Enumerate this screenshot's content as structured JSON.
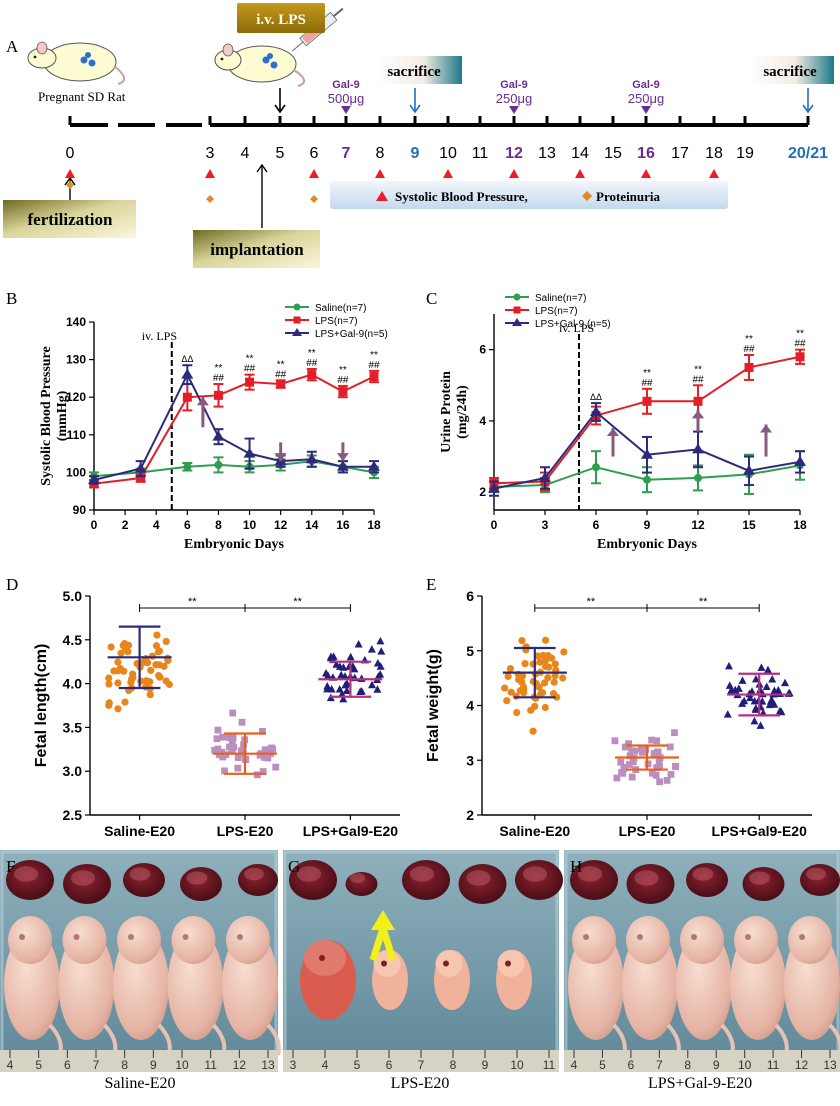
{
  "panel_labels": {
    "a": "A",
    "b": "B",
    "c": "C",
    "d": "D",
    "e": "E",
    "f": "F",
    "g": "G",
    "h": "H"
  },
  "timeline": {
    "rat_label": "Pregnant SD Rat",
    "ivlps_label": "i.v. LPS",
    "sacrifice_label": "sacrifice",
    "days": [
      "0",
      "3",
      "4",
      "5",
      "6",
      "7",
      "8",
      "9",
      "10",
      "11",
      "12",
      "13",
      "14",
      "15",
      "16",
      "17",
      "18",
      "19",
      "20/21"
    ],
    "gal9_label": "Gal-9",
    "gal9_doses": [
      "500μg",
      "250μg",
      "250μg"
    ],
    "fertilization_label": "fertilization",
    "implantation_label": "implantation",
    "legend_sbp": "Systolic Blood Pressure,",
    "legend_prot": "Proteinuria",
    "colors": {
      "sbp": "#ee1c24",
      "prot": "#e08a22",
      "gal9": "#6a2c91",
      "sacrifice": "#1f6fbf"
    }
  },
  "chart_data": [
    {
      "type": "line",
      "panel": "B",
      "ylabel": "Systolic Blood Pressure",
      "ylabel2": "(mmHg)",
      "xlabel": "Embryonic Days",
      "xlim": [
        0,
        18
      ],
      "ylim": [
        90,
        140
      ],
      "xticks": [
        0,
        2,
        4,
        6,
        8,
        10,
        12,
        14,
        16,
        18
      ],
      "yticks": [
        90,
        100,
        110,
        120,
        130,
        140
      ],
      "annotation": "iv. LPS",
      "x": [
        0,
        3,
        6,
        8,
        10,
        12,
        14,
        16,
        18
      ],
      "series": [
        {
          "name": "Saline(n=7)",
          "color": "#2e9e4f",
          "marker": "circle",
          "values": [
            99,
            100,
            101.5,
            102,
            101.5,
            102,
            103,
            101.5,
            100
          ],
          "errors": [
            1,
            1,
            1,
            2,
            1.5,
            1.5,
            1.5,
            1.5,
            1.5
          ]
        },
        {
          "name": "LPS(n=7)",
          "color": "#e41e26",
          "marker": "square",
          "values": [
            97,
            98.5,
            120,
            120.5,
            124,
            123.5,
            126,
            121.5,
            125.5
          ],
          "errors": [
            1,
            1,
            3.5,
            3,
            2,
            1,
            1.5,
            1.5,
            1.5
          ]
        },
        {
          "name": "LPS+Gal-9(n=5)",
          "color": "#2e2a7a",
          "marker": "triangle",
          "values": [
            98,
            101,
            126,
            109.5,
            105,
            103,
            103.5,
            101.5,
            101.5
          ],
          "errors": [
            1,
            2,
            2.5,
            2,
            4,
            1.5,
            2,
            1.5,
            1.5
          ]
        }
      ],
      "sig_x": [
        8,
        10,
        12,
        14,
        16,
        18
      ],
      "sig_star": "**",
      "sig_hash": "##",
      "delta_label": "ΔΔ"
    },
    {
      "type": "line",
      "panel": "C",
      "ylabel": "Urine Protein",
      "ylabel2": "(mg/24h)",
      "xlabel": "Embryonic Days",
      "xlim": [
        0,
        18
      ],
      "ylim": [
        1.5,
        7
      ],
      "xticks": [
        0,
        3,
        6,
        9,
        12,
        15,
        18
      ],
      "yticks": [
        2,
        4,
        6
      ],
      "annotation": "iv. LPS",
      "x": [
        0,
        3,
        6,
        9,
        12,
        15,
        18
      ],
      "series": [
        {
          "name": "Saline(n=7)",
          "color": "#2e9e4f",
          "marker": "circle",
          "values": [
            2.15,
            2.2,
            2.7,
            2.35,
            2.4,
            2.5,
            2.75
          ],
          "errors": [
            0.15,
            0.2,
            0.45,
            0.35,
            0.35,
            0.55,
            0.4
          ]
        },
        {
          "name": "LPS(n=7)",
          "color": "#e41e26",
          "marker": "square",
          "values": [
            2.25,
            2.3,
            4.15,
            4.55,
            4.55,
            5.5,
            5.8
          ],
          "errors": [
            0.15,
            0.25,
            0.25,
            0.35,
            0.45,
            0.35,
            0.2
          ]
        },
        {
          "name": "LPS+Gal-9 (n=5)",
          "color": "#2e2a7a",
          "marker": "triangle",
          "values": [
            2.1,
            2.4,
            4.25,
            3.05,
            3.2,
            2.6,
            2.85
          ],
          "errors": [
            0.2,
            0.3,
            0.25,
            0.5,
            0.5,
            0.4,
            0.3
          ]
        }
      ],
      "sig_x": [
        9,
        12,
        15,
        18
      ],
      "sig_star": "**",
      "sig_hash": "##",
      "delta_label": "ΔΔ"
    },
    {
      "type": "scatter",
      "panel": "D",
      "ylabel": "Fetal length(cm)",
      "ylim": [
        2.5,
        5.0
      ],
      "yticks": [
        "2.5",
        "3.0",
        "3.5",
        "4.0",
        "4.5",
        "5.0"
      ],
      "categories": [
        "Saline-E20",
        "LPS-E20",
        "LPS+Gal9-E20"
      ],
      "means": [
        4.3,
        3.2,
        4.05
      ],
      "sds": [
        0.35,
        0.23,
        0.2
      ],
      "ranges": [
        [
          3.5,
          4.8
        ],
        [
          2.8,
          3.8
        ],
        [
          3.6,
          4.6
        ]
      ],
      "counts": [
        52,
        40,
        44
      ],
      "sig": [
        "**",
        "**"
      ]
    },
    {
      "type": "scatter",
      "panel": "E",
      "ylabel": "Fetal weight(g)",
      "ylim": [
        2,
        6
      ],
      "yticks": [
        "2",
        "3",
        "4",
        "5",
        "6"
      ],
      "categories": [
        "Saline-E20",
        "LPS-E20",
        "LPS+Gal9-E20"
      ],
      "means": [
        4.6,
        3.05,
        4.2
      ],
      "sds": [
        0.45,
        0.22,
        0.38
      ],
      "ranges": [
        [
          3.45,
          5.45
        ],
        [
          2.35,
          3.7
        ],
        [
          3.3,
          5.1
        ]
      ],
      "counts": [
        52,
        40,
        44
      ],
      "sig": [
        "**",
        "**"
      ]
    }
  ],
  "scatter_colors": [
    "#e8861b",
    "#bb8ec0",
    "#1f1f7a"
  ],
  "scatter_bar_colors": [
    "#2e2a7a",
    "#e8611b",
    "#b5307f"
  ],
  "photos": {
    "ruler_f": [
      "4",
      "5",
      "6",
      "7",
      "8",
      "9",
      "10",
      "11",
      "12",
      "13"
    ],
    "ruler_g": [
      "3",
      "4",
      "5",
      "6",
      "7",
      "8",
      "9",
      "10",
      "11"
    ],
    "ruler_h": [
      "4",
      "5",
      "6",
      "7",
      "8",
      "9",
      "10",
      "11",
      "12",
      "13"
    ],
    "captions": [
      "Saline-E20",
      "LPS-E20",
      "LPS+Gal-9-E20"
    ]
  }
}
